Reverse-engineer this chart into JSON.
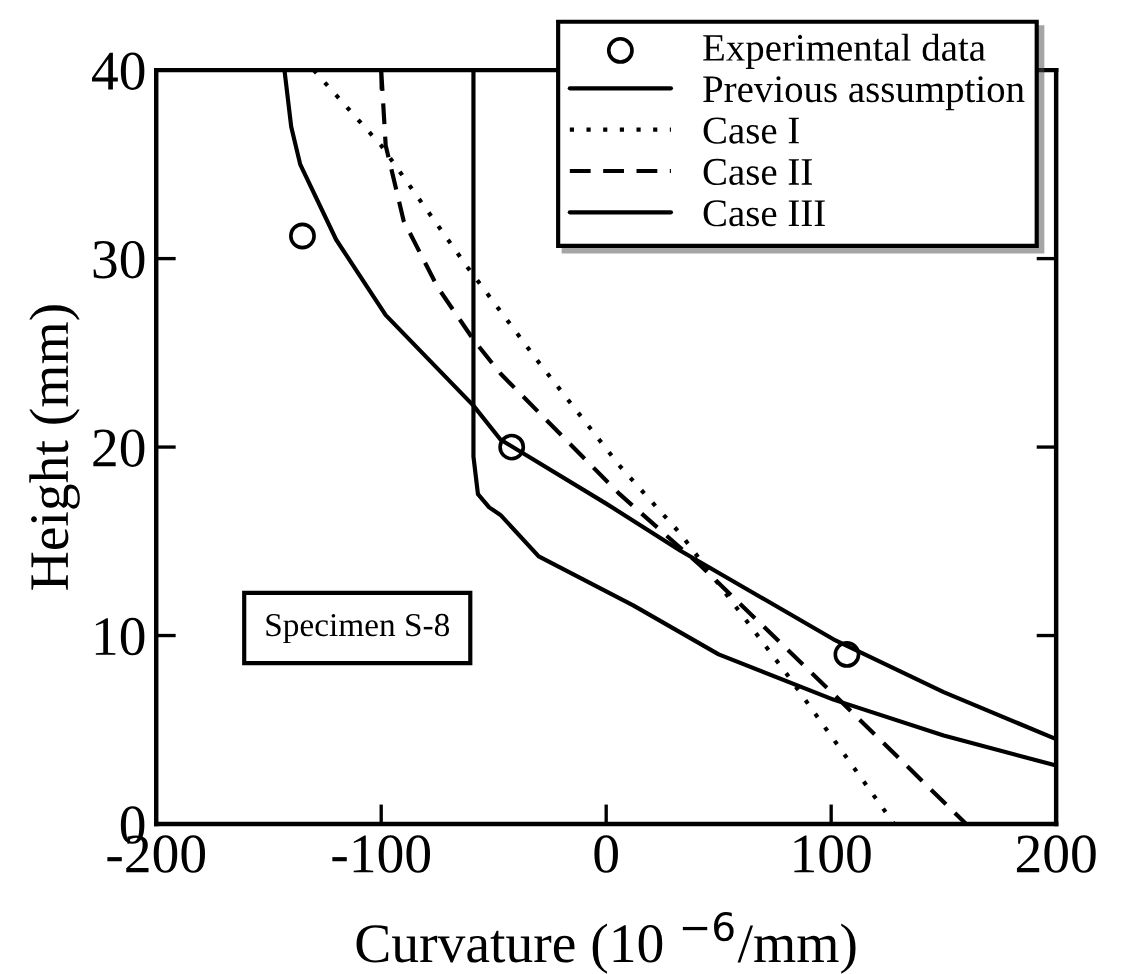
{
  "chart_data": {
    "type": "line",
    "xlabel": "Curvature (10 $^{−6}$/mm)",
    "ylabel": "Height (mm)",
    "xlim": [
      -200,
      200
    ],
    "ylim": [
      0,
      40
    ],
    "xticks": [
      -200,
      -100,
      0,
      100,
      200
    ],
    "yticks": [
      0,
      10,
      20,
      30,
      40
    ],
    "grid": false,
    "legend": "top right",
    "annotations": [
      "Specimen S-8"
    ],
    "series": [
      {
        "name": "Experimental data",
        "type": "scatter",
        "marker": "circle",
        "color": "#000000",
        "x": [
          -135,
          -42,
          107
        ],
        "values": [
          31.2,
          20,
          9
        ]
      },
      {
        "name": "Previous assumption",
        "color": "#000000",
        "line_style": "solid",
        "x": [
          -59,
          -59,
          -57,
          -52,
          -47,
          -30,
          12,
          50,
          101,
          150,
          200
        ],
        "values": [
          40,
          19.5,
          17.5,
          16.8,
          16.4,
          14.2,
          11.6,
          9,
          6.6,
          4.7,
          3.1
        ]
      },
      {
        "name": "Case I",
        "color": "#000000",
        "line_style": "dotted",
        "x": [
          -130,
          -100,
          -62,
          -30,
          6,
          33,
          80,
          128
        ],
        "values": [
          40,
          36,
          29.6,
          24.5,
          19,
          15.4,
          8,
          0
        ]
      },
      {
        "name": "Case II",
        "color": "#000000",
        "line_style": "dashed",
        "x": [
          -100,
          -98,
          -90,
          -75,
          -59,
          -47,
          6,
          42,
          101,
          160
        ],
        "values": [
          40,
          36,
          32,
          28.5,
          25.7,
          23.9,
          17.5,
          13.7,
          6.9,
          0
        ]
      },
      {
        "name": "Case III",
        "color": "#000000",
        "line_style": "solid",
        "x": [
          -143,
          -140,
          -136,
          -120,
          -98,
          -59,
          -47,
          0,
          33,
          101,
          150,
          200
        ],
        "values": [
          40,
          37,
          35,
          31,
          27,
          22.2,
          20.4,
          17,
          14.5,
          9.8,
          7,
          4.5
        ]
      }
    ]
  }
}
